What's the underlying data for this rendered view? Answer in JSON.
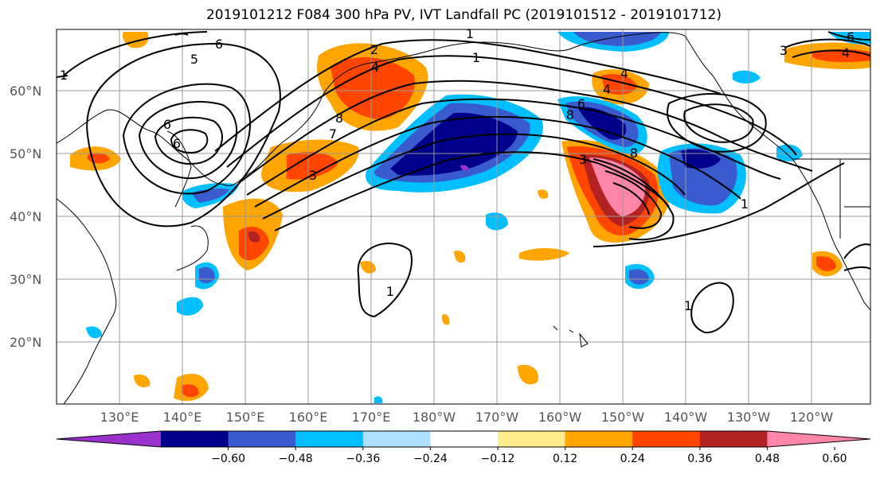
{
  "title": "2019101212 F084 300 hPa PV, IVT Landfall PC (2019101512 - 2019101712)",
  "lat_labels": [
    "60°N",
    "50°N",
    "40°N",
    "30°N",
    "20°N"
  ],
  "lon_labels": [
    "130°E",
    "140°E",
    "150°E",
    "160°E",
    "170°E",
    "180°W",
    "170°W",
    "160°W",
    "150°W",
    "140°W",
    "130°W",
    "120°W"
  ],
  "colorbar": {
    "colors": [
      "#9932CC",
      "#00008B",
      "#3A5BCD",
      "#00BFFF",
      "#ADDFFF",
      "#FFFFFF",
      "#FFEC8B",
      "#FFA500",
      "#FF4500",
      "#B22222",
      "#FF86A8"
    ],
    "tick_labels": [
      "-0.60",
      "-0.48",
      "-0.36",
      "-0.24",
      "-0.12",
      "0.12",
      "0.24",
      "0.36",
      "0.48",
      "0.60"
    ]
  },
  "contour_labels": [
    "1",
    "2",
    "4",
    "5",
    "6",
    "6",
    "8",
    "3",
    "7",
    "8",
    "6",
    "4",
    "3",
    "4",
    "8",
    "4",
    "6",
    "3",
    "1",
    "1",
    "1",
    "1",
    "6",
    "1"
  ]
}
